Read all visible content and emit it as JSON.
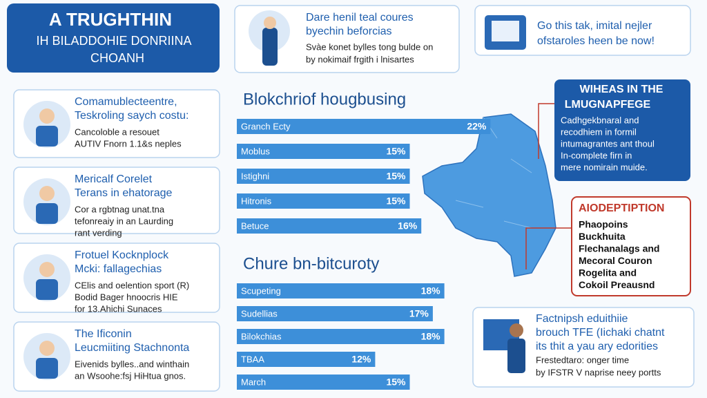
{
  "header": {
    "lines": [
      "A TRUGHTHIN",
      "IH BILADDOHIE DONRIINA",
      "CHOANH"
    ]
  },
  "top_card": {
    "title": [
      "Dare henil teal coures",
      "byechin beforcias"
    ],
    "body": [
      "Svàe konet bylles tong bulde on",
      "by nokimaif frgith i lnisartes"
    ]
  },
  "top_right_card": {
    "lines": [
      "Go this tak, imital nejler",
      "ofstaroles heen be now!"
    ]
  },
  "left_cards": [
    {
      "title": [
        "Comamublecteentre,",
        "Teskroling saych costu:"
      ],
      "body": [
        "Cancoloble a resouet",
        "AUTIV Fnorn 1.1&s neples"
      ]
    },
    {
      "title": [
        "Mericalf Corelet",
        "Terans in ehatorage"
      ],
      "body": [
        "Cor a rgbtnag unat.tna",
        "tefonreaiy in an Laurding",
        "rant verding"
      ]
    },
    {
      "title": [
        "Frotuel Kocknplock",
        "Mcki: fallagechias"
      ],
      "body": [
        "CElis and oelention sport (R)",
        "Bodid Bager hnoocris HIE",
        "for 13.Ahichi Sunaces"
      ]
    },
    {
      "title": [
        "The Ificonin",
        "Leucmiiting Stachnonta"
      ],
      "body": [
        "Eivenids bylles..and winthain",
        "an Wsoohe:fsj HiHtua gnos."
      ]
    }
  ],
  "chart_data": [
    {
      "type": "bar",
      "title": "Blokchriof hougbusing",
      "categories": [
        "Granch Ecty",
        "Moblus",
        "Istighni",
        "Hitronis",
        "Betuce"
      ],
      "values": [
        22,
        15,
        15,
        15,
        16
      ],
      "value_labels": [
        "22%",
        "15%",
        "15%",
        "15%",
        "16%"
      ],
      "color": "#3d8fd9"
    },
    {
      "type": "bar",
      "title": "Chure bn-bitcuroty",
      "categories": [
        "Scupeting",
        "Sudellias",
        "Bilokchias",
        "TBAA",
        "March"
      ],
      "values": [
        18,
        17,
        18,
        12,
        15
      ],
      "value_labels": [
        "18%",
        "17%",
        "18%",
        "12%",
        "15%"
      ],
      "color": "#3d8fd9"
    }
  ],
  "info_box": {
    "title": [
      "WIHEAS IN THE",
      "LMUGNAPFEGE"
    ],
    "body": [
      "Cadhgekbnaral and",
      "recodhiem in formil",
      "intumagrantes ant thoul",
      "In-complete firn in",
      "mere nomirain muide."
    ]
  },
  "red_box": {
    "title": "AIODEPTIPTION",
    "items": [
      "Phaopoins",
      "Buckhuita",
      "Flechanalags and",
      "Mecoral Couron",
      "Rogelita and",
      "Cokoil Preausnd"
    ]
  },
  "bottom_card": {
    "title": [
      "Factnipsh eduithiie",
      "brouch TFE (Iichaki chatnt",
      "its thit a yau ary edorities"
    ],
    "body": [
      "Frestedtaro: onger time",
      "by IFSTR V naprise neey portts"
    ]
  }
}
